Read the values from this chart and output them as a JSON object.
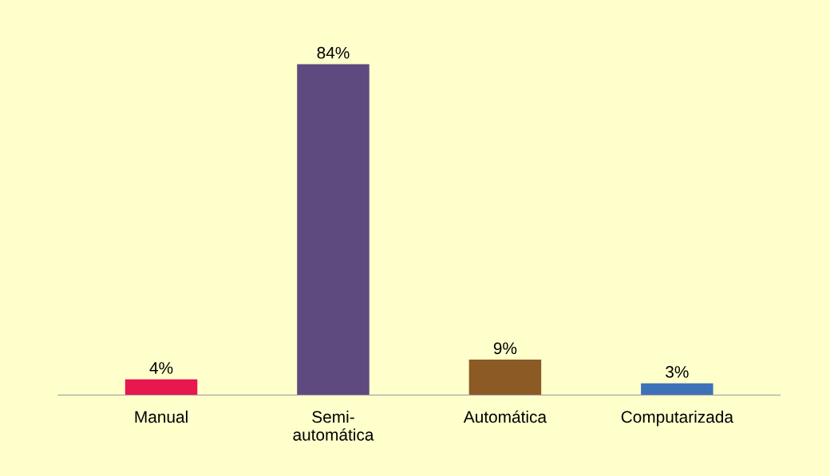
{
  "chart_data": {
    "type": "bar",
    "categories": [
      "Manual",
      "Semi-\nautomática",
      "Automática",
      "Computarizada"
    ],
    "values": [
      4,
      84,
      9,
      3
    ],
    "colors": [
      "#e8174f",
      "#5e4a7e",
      "#8c5a24",
      "#3d72b8"
    ],
    "value_labels": [
      "4%",
      "84%",
      "9%",
      "3%"
    ],
    "grid": false,
    "legend": false
  }
}
